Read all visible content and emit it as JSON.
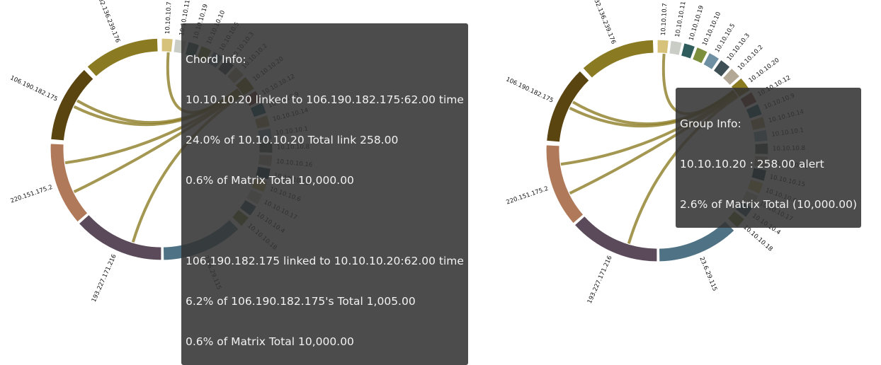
{
  "left_diagram": {
    "groups": [
      {
        "label": "10.10.10.7",
        "start": 0,
        "end": 6,
        "color": "#d6c27a"
      },
      {
        "label": "10.10.10.11",
        "start": 7,
        "end": 13,
        "color": "#c9cdc6"
      },
      {
        "label": "10.10.10.19",
        "start": 14,
        "end": 20,
        "color": "#2f5c5c"
      },
      {
        "label": "10.10.10.10",
        "start": 21,
        "end": 27,
        "color": "#7b8f3d"
      },
      {
        "label": "10.10.10.5",
        "start": 28,
        "end": 34,
        "color": "#6f8fa3"
      },
      {
        "label": "10.10.10.3",
        "start": 35,
        "end": 41,
        "color": "#3f4f56"
      },
      {
        "label": "10.10.10.2",
        "start": 42,
        "end": 48,
        "color": "#b3a896"
      },
      {
        "label": "10.10.10.20",
        "start": 49,
        "end": 57,
        "color": "#8a7a20"
      },
      {
        "label": "10.10.10.12",
        "start": 58,
        "end": 64,
        "color": "#7a3530"
      },
      {
        "label": "10.10.10.9",
        "start": 65,
        "end": 71,
        "color": "#0f5068"
      },
      {
        "label": "10.10.10.14",
        "start": 72,
        "end": 78,
        "color": "#a89a5c"
      },
      {
        "label": "10.10.10.1",
        "start": 79,
        "end": 85,
        "color": "#7fa0b8"
      },
      {
        "label": "10.10.10.8",
        "start": 86,
        "end": 92,
        "color": "#4a5a5a"
      },
      {
        "label": "10.10.10.16",
        "start": 93,
        "end": 99,
        "color": "#b3ab9a"
      },
      {
        "label": "10.10.10.15",
        "start": 100,
        "end": 106,
        "color": "#0f3a48"
      },
      {
        "label": "10.10.10.6",
        "start": 107,
        "end": 113,
        "color": "#d4ba6a"
      },
      {
        "label": "10.10.10.17",
        "start": 114,
        "end": 120,
        "color": "#c8ccc4"
      },
      {
        "label": "10.10.10.4",
        "start": 121,
        "end": 127,
        "color": "#2f5a62"
      },
      {
        "label": "10.10.10.18",
        "start": 128,
        "end": 134,
        "color": "#7a8f3a"
      },
      {
        "label": "23.6.29.115",
        "start": 136,
        "end": 179,
        "color": "#4f7285"
      },
      {
        "label": "193.227.171.216",
        "start": 180,
        "end": 228,
        "color": "#5a4a5a"
      },
      {
        "label": "220.151.175.2",
        "start": 229,
        "end": 273,
        "color": "#b07a5a"
      },
      {
        "label": "106.190.182.175",
        "start": 275,
        "end": 316,
        "color": "#5a4510"
      },
      {
        "label": "232.136.239.176",
        "start": 318,
        "end": 358,
        "color": "#8a7a22"
      }
    ],
    "tooltip": {
      "lines": [
        "Chord Info:",
        "10.10.10.20 linked to 106.190.182.175:62.00 time",
        "24.0% of 10.10.10.20 Total link 258.00",
        "0.6% of Matrix Total 10,000.00",
        "",
        "106.190.182.175 linked to 10.10.10.20:62.00 time",
        "6.2% of 106.190.182.175's Total 1,005.00",
        "0.6% of Matrix Total 10,000.00"
      ]
    }
  },
  "right_diagram": {
    "tooltip": {
      "lines": [
        "Group Info:",
        "10.10.10.20 : 258.00 alert",
        "2.6% of Matrix Total (10,000.00)"
      ]
    }
  },
  "chords": [
    {
      "source_angle": 52,
      "target_angle": 4,
      "color": "#8a7a20"
    },
    {
      "source_angle": 52,
      "target_angle": 300,
      "color": "#8a7a20"
    },
    {
      "source_angle": 53,
      "target_angle": 296,
      "color": "#8a7a20"
    },
    {
      "source_angle": 54,
      "target_angle": 262,
      "color": "#8a7a20"
    },
    {
      "source_angle": 55,
      "target_angle": 244,
      "color": "#8a7a20"
    },
    {
      "source_angle": 56,
      "target_angle": 197,
      "color": "#8a7a20"
    }
  ]
}
